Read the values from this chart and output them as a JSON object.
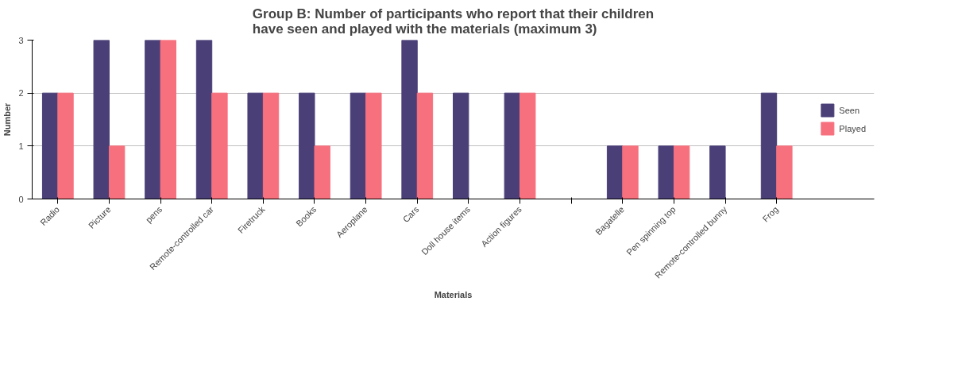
{
  "chart_data": {
    "type": "bar",
    "title": "Group B: Number of participants who report that their children have seen and played with the materials (maximum 3)",
    "xlabel": "Materials",
    "ylabel": "Number",
    "categories": [
      "Radio",
      "Picture",
      "pens",
      "Remote-controlled car",
      "Firetruck",
      "Books",
      "Aeroplane",
      "Cars",
      "Doll house items",
      "Action figures",
      null,
      "Bagatelle",
      "Pen spinning top",
      "Remote-controlled bunny",
      "Frog"
    ],
    "series": [
      {
        "name": "Seen",
        "color": "#4b3f78",
        "values": [
          2,
          3,
          3,
          3,
          2,
          2,
          2,
          3,
          2,
          2,
          0,
          1,
          1,
          1,
          2
        ]
      },
      {
        "name": "Played",
        "color": "#f7707e",
        "values": [
          2,
          1,
          3,
          2,
          2,
          1,
          2,
          2,
          0,
          2,
          0,
          1,
          1,
          0,
          1
        ]
      }
    ],
    "ylim": [
      0,
      3
    ],
    "yticks": [
      0,
      1,
      2,
      3
    ],
    "grid": "y",
    "legend": "right"
  }
}
